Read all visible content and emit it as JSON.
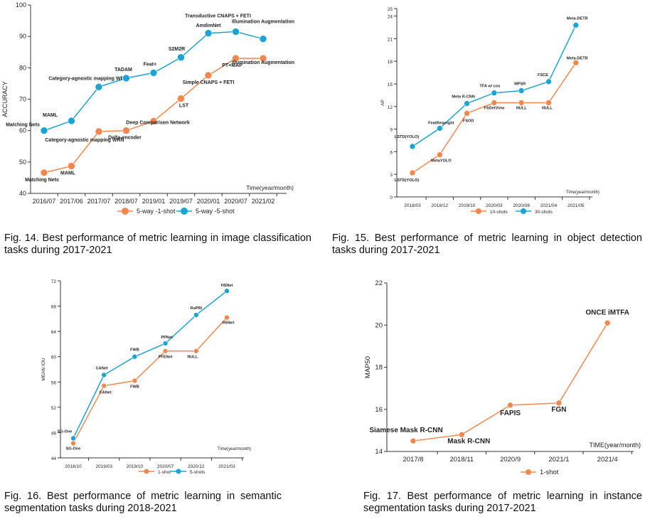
{
  "colors": {
    "orange": "#f4874e",
    "blue": "#1aa3d4",
    "axis": "#333333"
  },
  "charts": [
    {
      "id": "fig14",
      "caption": "Fig. 14. Best performance of metric learning in image classification tasks during 2017-2021",
      "chart_data": {
        "type": "line",
        "categories": [
          "2016/07",
          "2017/06",
          "2017/07",
          "2018/07",
          "2019/01",
          "2019/07",
          "2020/01",
          "2020/07",
          "2021/02"
        ],
        "ylabel": "ACCURACY",
        "xlabel": "Time(year/month)",
        "ylim": [
          40,
          100
        ],
        "yticks": [
          40,
          50,
          60,
          70,
          80,
          90,
          100
        ],
        "series": [
          {
            "name": "5-way -1-shot",
            "color": "#f4874e",
            "values": [
              46.6,
              48.7,
              59.7,
              60.0,
              63.0,
              70.2,
              77.6,
              83.0,
              83.0
            ],
            "labels": [
              "Matching Nets",
              "MAML",
              "Category-agnostic mapping WRN",
              "Delta-encoder",
              "Deep Comparison Network",
              "LST",
              "Simple CNAPS + FETI",
              "PT+MAP",
              "Illumination Augmentation"
            ]
          },
          {
            "name": "5-way -5-shot",
            "color": "#1aa3d4",
            "values": [
              60.0,
              63.1,
              73.9,
              76.7,
              78.4,
              83.3,
              91.0,
              91.5,
              89.2
            ],
            "labels": [
              "Matching Nets",
              "MAML",
              "Category-agnostic mapping WRN",
              "TADAM",
              "Feat+",
              "S2M2R",
              "AmdimNet",
              "Transductive CNAPS + FETI",
              "Illumination Augmentation"
            ]
          }
        ]
      }
    },
    {
      "id": "fig15",
      "caption": "Fig. 15. Best performance of metric learning in object detection tasks during 2017-2021",
      "chart_data": {
        "type": "line",
        "categories": [
          "2018/03",
          "2018/12",
          "2019/10",
          "2020/03",
          "2020/08",
          "2021/04",
          "2021/05"
        ],
        "ylabel": "AP",
        "xlabel": "Time(year/month)",
        "ylim": [
          0,
          25
        ],
        "yticks": [
          0,
          3,
          6,
          9,
          12,
          15,
          18,
          21,
          24,
          25
        ],
        "series": [
          {
            "name": "10-shots",
            "color": "#f4874e",
            "values": [
              3.2,
              5.6,
              11.1,
              12.5,
              12.5,
              12.5,
              17.8
            ],
            "labels": [
              "LSTD(YOLO)",
              "MetaYOLO",
              "FSOD",
              "FSDetView",
              "NULL",
              "NULL",
              "Meta-DETR"
            ]
          },
          {
            "name": "30-shots",
            "color": "#1aa3d4",
            "values": [
              6.7,
              9.1,
              12.4,
              13.8,
              14.1,
              15.3,
              22.8
            ],
            "labels": [
              "LSTD(YOLO)",
              "FeatReweight",
              "Meta R-CNN",
              "TFA w/ cos",
              "MPSR",
              "FSCE",
              "Meta-DETR"
            ]
          }
        ]
      }
    },
    {
      "id": "fig16",
      "caption": "Fig. 16. Best performance of metric learning in semantic segmentation tasks during 2018-2021",
      "chart_data": {
        "type": "line",
        "categories": [
          "2018/10",
          "2019/03",
          "2019/10",
          "2020/07",
          "2020/12",
          "2021/03"
        ],
        "ylabel": "MEAN IOU",
        "xlabel": "Time(year/month)",
        "ylim": [
          44,
          72
        ],
        "yticks": [
          44,
          48,
          52,
          56,
          60,
          64,
          68,
          72
        ],
        "series": [
          {
            "name": "1-shot",
            "color": "#f4874e",
            "values": [
              46.3,
              55.4,
              56.2,
              60.9,
              60.9,
              66.2
            ],
            "labels": [
              "SG-One",
              "CANet",
              "FWB",
              "PFENet",
              "NULL",
              "HSNet"
            ]
          },
          {
            "name": "5-shots",
            "color": "#1aa3d4",
            "values": [
              47.1,
              57.1,
              60.0,
              62.1,
              66.6,
              70.4
            ],
            "labels": [
              "SG-One",
              "CANet",
              "FWB",
              "PPNet",
              "RePRI",
              "HSNet"
            ]
          }
        ]
      }
    },
    {
      "id": "fig17",
      "caption": "Fig. 17. Best performance of metric learning in instance segmentation tasks during 2017-2021",
      "chart_data": {
        "type": "line",
        "categories": [
          "2017/8",
          "2018/11",
          "2020/9",
          "2021/1",
          "2021/4"
        ],
        "ylabel": "MAP50",
        "xlabel": "TIME(year/month)",
        "ylim": [
          14,
          22
        ],
        "yticks": [
          14,
          16,
          18,
          20,
          22
        ],
        "series": [
          {
            "name": "1-shot",
            "color": "#f4874e",
            "values": [
              14.5,
              14.8,
              16.2,
              16.3,
              20.1
            ],
            "labels": [
              "Siamese Mask R-CNN",
              "Mask R-CNN",
              "FAPIS",
              "FGN",
              "ONCE iMTFA"
            ]
          }
        ]
      }
    }
  ]
}
